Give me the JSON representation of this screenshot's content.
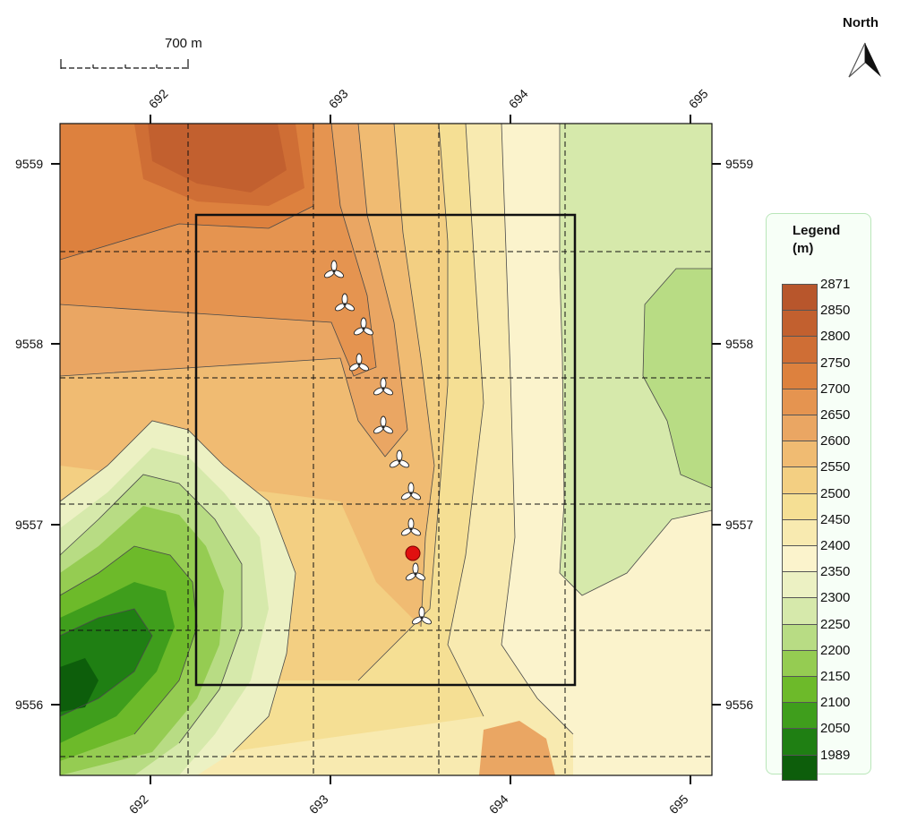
{
  "scale_bar": {
    "label": "700 m"
  },
  "north_arrow": {
    "label": "North"
  },
  "axes": {
    "x_ticks": [
      "692",
      "693",
      "694",
      "695"
    ],
    "y_ticks": [
      "9559",
      "9558",
      "9557",
      "9556"
    ]
  },
  "legend": {
    "title_line1": "Legend",
    "title_line2": "(m)",
    "levels": [
      {
        "label": "2871",
        "color": "#b8562c"
      },
      {
        "label": "2850",
        "color": "#c2602f"
      },
      {
        "label": "2800",
        "color": "#cf6e35"
      },
      {
        "label": "2750",
        "color": "#dd813e"
      },
      {
        "label": "2700",
        "color": "#e59450"
      },
      {
        "label": "2650",
        "color": "#eaa663"
      },
      {
        "label": "2600",
        "color": "#f0bb72"
      },
      {
        "label": "2550",
        "color": "#f3cf82"
      },
      {
        "label": "2500",
        "color": "#f5df94"
      },
      {
        "label": "2450",
        "color": "#f8eab0"
      },
      {
        "label": "2400",
        "color": "#fbf3cc"
      },
      {
        "label": "2350",
        "color": "#ecf1c3"
      },
      {
        "label": "2300",
        "color": "#d6e9ab"
      },
      {
        "label": "2250",
        "color": "#b8dc84"
      },
      {
        "label": "2200",
        "color": "#95cc52"
      },
      {
        "label": "2150",
        "color": "#6dba2a"
      },
      {
        "label": "2100",
        "color": "#3f9e1c"
      },
      {
        "label": "2050",
        "color": "#1f7f13"
      },
      {
        "label": "1989",
        "color": "#0d5e0b"
      }
    ]
  },
  "markers": {
    "turbine_count": 11,
    "station_color": "#e01010"
  }
}
